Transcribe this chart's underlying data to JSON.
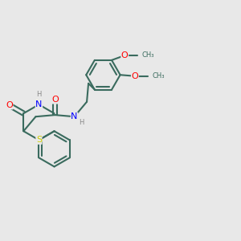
{
  "bg_color": "#e8e8e8",
  "bond_color": "#3a6b5e",
  "bond_width": 1.5,
  "atom_colors": {
    "S": "#cccc00",
    "N": "#0000ff",
    "O": "#ff0000",
    "C": "#3a6b5e",
    "H": "#888888"
  },
  "font_size_atom": 7.0,
  "fig_size": [
    3.0,
    3.0
  ],
  "xlim": [
    0,
    10
  ],
  "ylim": [
    0,
    10
  ]
}
